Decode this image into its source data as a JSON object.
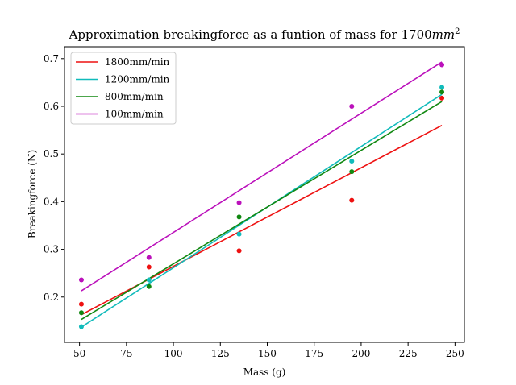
{
  "chart_data": {
    "type": "scatter",
    "title_main": "Approximation breakingforce as a funtion of mass for 1700",
    "title_unit": "mm",
    "title_exp": "2",
    "xlabel": "Mass (g)",
    "ylabel": "Breakingforce (N)",
    "xlim": [
      42,
      255
    ],
    "ylim": [
      0.105,
      0.725
    ],
    "xticks": [
      50,
      75,
      100,
      125,
      150,
      175,
      200,
      225,
      250
    ],
    "yticks": [
      0.2,
      0.3,
      0.4,
      0.5,
      0.6,
      0.7
    ],
    "ytick_labels": [
      "0.2",
      "0.3",
      "0.4",
      "0.5",
      "0.6",
      "0.7"
    ],
    "grid": false,
    "legend_position": "top-left",
    "x": [
      51,
      87,
      135,
      195,
      243
    ],
    "series": [
      {
        "name": "1800mm/min",
        "color": "#ee1111",
        "values": [
          0.185,
          0.263,
          0.297,
          0.403,
          0.617
        ],
        "fit": [
          0.163,
          0.56
        ]
      },
      {
        "name": "1200mm/min",
        "color": "#11bbbb",
        "values": [
          0.138,
          0.236,
          0.332,
          0.485,
          0.64
        ],
        "fit": [
          0.137,
          0.625
        ]
      },
      {
        "name": "800mm/min",
        "color": "#118811",
        "values": [
          0.167,
          0.222,
          0.368,
          0.463,
          0.63
        ],
        "fit": [
          0.153,
          0.61
        ]
      },
      {
        "name": "100mm/min",
        "color": "#bb11bb",
        "values": [
          0.236,
          0.283,
          0.398,
          0.6,
          0.687
        ],
        "fit": [
          0.213,
          0.693
        ]
      }
    ]
  }
}
